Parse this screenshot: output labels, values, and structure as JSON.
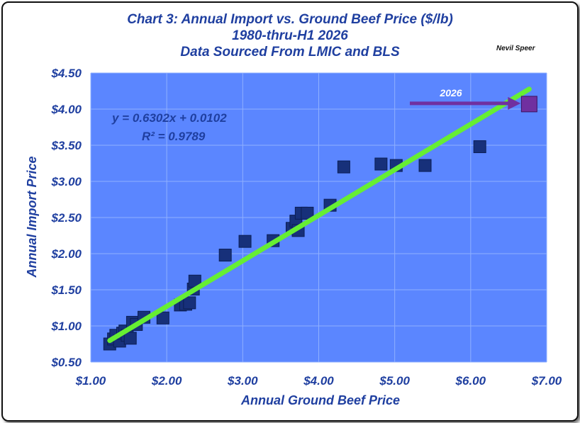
{
  "chart_data": {
    "type": "scatter",
    "title": [
      "Chart 3:  Annual Import vs. Ground Beef Price ($/lb)",
      "1980-thru-H1 2026",
      "Data Sourced From LMIC and BLS"
    ],
    "author": "Nevil Speer",
    "xlabel": "Annual Ground Beef Price",
    "ylabel": "Annual Import Price",
    "xlim": [
      1.0,
      7.0
    ],
    "ylim": [
      0.5,
      4.5
    ],
    "xticks": [
      1,
      2,
      3,
      4,
      5,
      6,
      7
    ],
    "yticks": [
      0.5,
      1.0,
      1.5,
      2.0,
      2.5,
      3.0,
      3.5,
      4.0,
      4.5
    ],
    "xtick_labels": [
      "$1.00",
      "$2.00",
      "$3.00",
      "$4.00",
      "$5.00",
      "$6.00",
      "$7.00"
    ],
    "ytick_labels": [
      "$0.50",
      "$1.00",
      "$1.50",
      "$2.00",
      "$2.50",
      "$3.00",
      "$3.50",
      "$4.00",
      "$4.50"
    ],
    "grid": true,
    "points": [
      {
        "x": 1.25,
        "y": 0.75
      },
      {
        "x": 1.3,
        "y": 0.82
      },
      {
        "x": 1.33,
        "y": 0.87
      },
      {
        "x": 1.38,
        "y": 0.79
      },
      {
        "x": 1.42,
        "y": 0.9
      },
      {
        "x": 1.45,
        "y": 0.93
      },
      {
        "x": 1.48,
        "y": 0.87
      },
      {
        "x": 1.52,
        "y": 0.83
      },
      {
        "x": 1.55,
        "y": 1.05
      },
      {
        "x": 1.6,
        "y": 1.02
      },
      {
        "x": 1.7,
        "y": 1.12
      },
      {
        "x": 1.95,
        "y": 1.11
      },
      {
        "x": 2.18,
        "y": 1.29
      },
      {
        "x": 2.25,
        "y": 1.3
      },
      {
        "x": 2.3,
        "y": 1.32
      },
      {
        "x": 2.35,
        "y": 1.51
      },
      {
        "x": 2.37,
        "y": 1.62
      },
      {
        "x": 2.77,
        "y": 1.98
      },
      {
        "x": 3.03,
        "y": 2.17
      },
      {
        "x": 3.4,
        "y": 2.18
      },
      {
        "x": 3.65,
        "y": 2.35
      },
      {
        "x": 3.7,
        "y": 2.45
      },
      {
        "x": 3.73,
        "y": 2.32
      },
      {
        "x": 3.77,
        "y": 2.56
      },
      {
        "x": 3.85,
        "y": 2.56
      },
      {
        "x": 4.15,
        "y": 2.67
      },
      {
        "x": 4.33,
        "y": 3.2
      },
      {
        "x": 4.82,
        "y": 3.24
      },
      {
        "x": 5.02,
        "y": 3.22
      },
      {
        "x": 5.4,
        "y": 3.22
      },
      {
        "x": 6.12,
        "y": 3.48
      }
    ],
    "highlight": {
      "x": 6.77,
      "y": 4.07,
      "label": "2026",
      "color": "#7030a0"
    },
    "trendline": {
      "slope": 0.6302,
      "intercept": 0.0102,
      "x_range": [
        1.25,
        6.77
      ],
      "color": "#66ee33"
    },
    "equation": "y = 0.6302x + 0.0102",
    "r_squared": "R² = 0.9789",
    "plot_color": "#5b86ff",
    "marker_color": "#17307a"
  }
}
